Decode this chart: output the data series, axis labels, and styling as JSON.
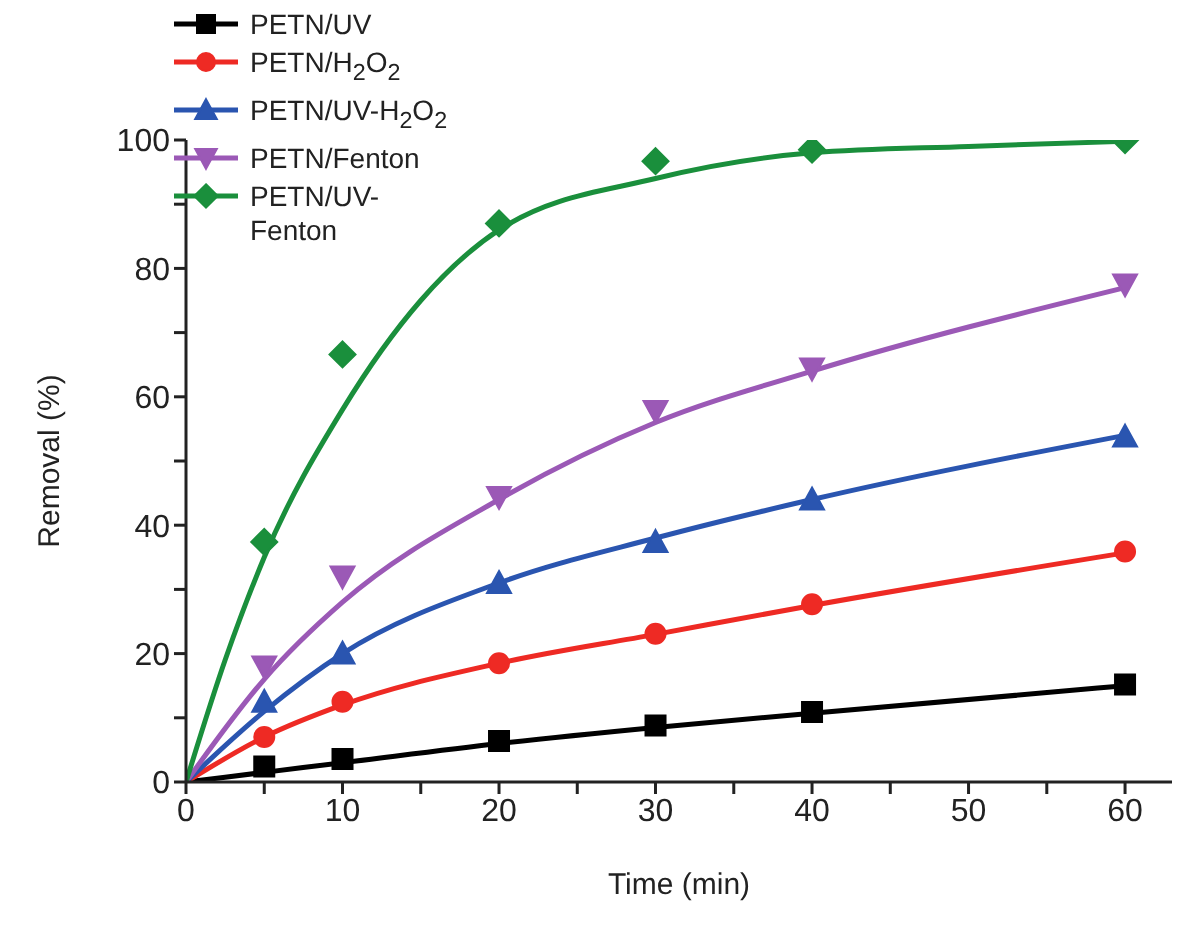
{
  "chart_data": {
    "type": "scatter",
    "xlabel": "Time (min)",
    "ylabel": "Removal (%)",
    "x": [
      5,
      10,
      20,
      30,
      40,
      60
    ],
    "xlim": [
      0,
      63
    ],
    "xticks": [
      0,
      {
        "value": 5,
        "label": null
      },
      10,
      {
        "value": 15,
        "label": null
      },
      20,
      {
        "value": 25,
        "label": null
      },
      30,
      {
        "value": 35,
        "label": null
      },
      40,
      {
        "value": 45,
        "label": null
      },
      50,
      {
        "value": 55,
        "label": null
      },
      60
    ],
    "ylim": [
      0,
      100
    ],
    "yticks": [
      0,
      {
        "value": 10,
        "label": null
      },
      20,
      {
        "value": 30,
        "label": null
      },
      40,
      {
        "value": 50,
        "label": null
      },
      60,
      {
        "value": 70,
        "label": null
      },
      80,
      {
        "value": 90,
        "label": null
      },
      100
    ],
    "legend": "top left",
    "grid": false,
    "series": [
      {
        "name": "PETN/UV",
        "color": "#000000",
        "marker": "square",
        "values": [
          2.4,
          3.6,
          6.4,
          8.8,
          10.9,
          15.2
        ]
      },
      {
        "name": "PETN/H$_{2}$O$_{2}$",
        "color": "#ee2a24",
        "marker": "circle",
        "values": [
          7.0,
          12.5,
          18.5,
          23.1,
          27.7,
          35.9
        ]
      },
      {
        "name": "PETN/UV-H$_{2}$O$_{2}$",
        "color": "#2a55b0",
        "marker": "triangle",
        "values": [
          12.5,
          20,
          31,
          37.4,
          44,
          53.8
        ]
      },
      {
        "name": "PETN/Fenton",
        "color": "#9b59b6",
        "marker": "triangle-down",
        "values": [
          18,
          32,
          44.4,
          57.8,
          64.4,
          77.5
        ]
      },
      {
        "name": "PETN/UV-Fenton",
        "color": "#1a8f3c",
        "marker": "diamond",
        "values": [
          37.4,
          66.6,
          87,
          96.7,
          98.5,
          100
        ]
      },
      {
        "type": "line",
        "color": "#000000",
        "x": [
          0,
          5,
          10,
          20,
          30,
          40,
          60
        ],
        "values": [
          0,
          1.5,
          3,
          6,
          8.5,
          10.7,
          15
        ]
      },
      {
        "type": "line",
        "color": "#ee2a24",
        "x": [
          0,
          5,
          10,
          20,
          30,
          40,
          60
        ],
        "values": [
          0,
          7,
          12,
          18.5,
          23,
          27.5,
          35.7
        ]
      },
      {
        "type": "line",
        "color": "#2a55b0",
        "x": [
          0,
          5,
          10,
          20,
          30,
          40,
          60
        ],
        "values": [
          0,
          11,
          20,
          31,
          38,
          44,
          54
        ]
      },
      {
        "type": "line",
        "color": "#9b59b6",
        "x": [
          0,
          5,
          10,
          20,
          30,
          40,
          60
        ],
        "values": [
          0,
          16,
          28,
          44,
          56,
          64,
          77
        ]
      },
      {
        "type": "line",
        "color": "#1a8f3c",
        "x": [
          0,
          2.5,
          5,
          10,
          15,
          20,
          30,
          40,
          50,
          60
        ],
        "values": [
          0,
          19,
          35,
          58,
          75,
          86,
          94,
          98,
          99,
          99.8
        ]
      }
    ]
  }
}
